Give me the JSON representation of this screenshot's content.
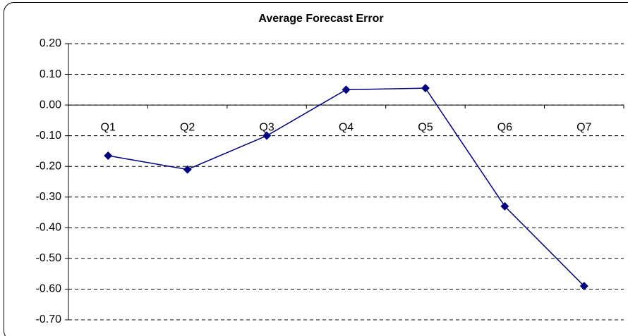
{
  "chart_data": {
    "type": "line",
    "title": "Average Forecast Error",
    "categories": [
      "Q1",
      "Q2",
      "Q3",
      "Q4",
      "Q5",
      "Q6",
      "Q7"
    ],
    "series": [
      {
        "name": "Average Forecast Error",
        "color": "#000080",
        "values": [
          -0.165,
          -0.21,
          -0.1,
          0.05,
          0.055,
          -0.33,
          -0.59
        ]
      }
    ],
    "ylim": [
      -0.7,
      0.2
    ],
    "yticks": [
      {
        "value": 0.2,
        "label": "0.20"
      },
      {
        "value": 0.1,
        "label": "0.10"
      },
      {
        "value": 0,
        "label": "0.00"
      },
      {
        "value": -0.1,
        "label": "-0.10"
      },
      {
        "value": -0.2,
        "label": "-0.20"
      },
      {
        "value": -0.3,
        "label": "-0.30"
      },
      {
        "value": -0.4,
        "label": "-0.40"
      },
      {
        "value": -0.5,
        "label": "-0.50"
      },
      {
        "value": -0.6,
        "label": "-0.60"
      },
      {
        "value": -0.7,
        "label": "-0.70"
      }
    ],
    "grid": true
  }
}
